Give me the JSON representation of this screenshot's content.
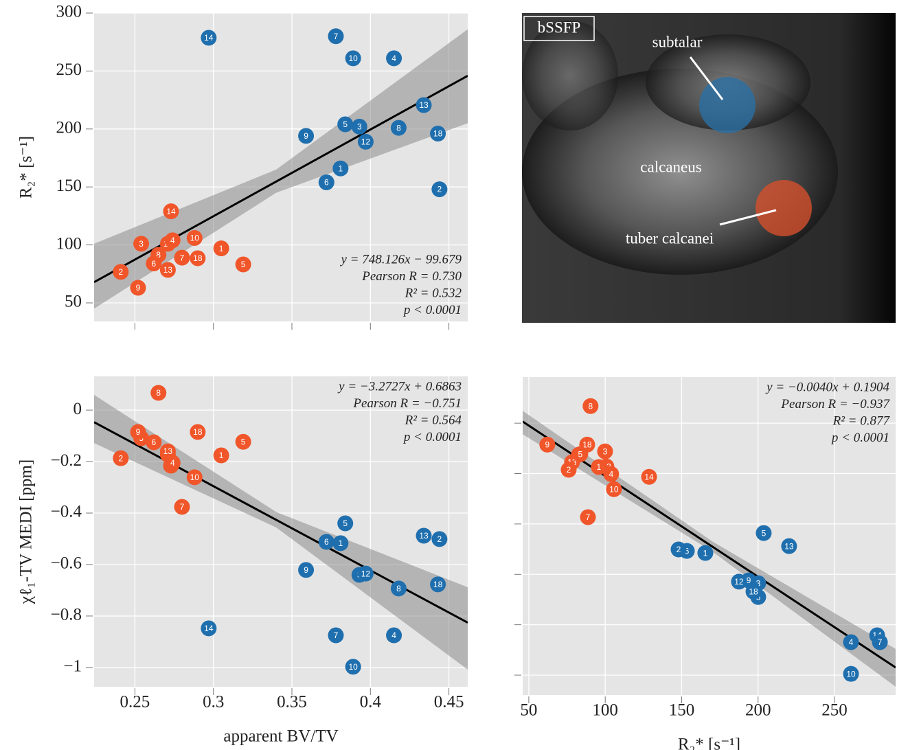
{
  "chart_data": [
    {
      "type": "scatter",
      "ylabel": "R₂*  [s⁻¹]",
      "xlim": [
        0.224,
        0.462
      ],
      "ylim": [
        34,
        300
      ],
      "xticks": [
        0.25,
        0.3,
        0.35,
        0.4,
        0.45
      ],
      "xtick_labels": false,
      "yticks": [
        50,
        100,
        150,
        200,
        250,
        300
      ],
      "grid": true,
      "series": [
        {
          "color": "#1f6fae",
          "labels": [
            "14",
            "7",
            "10",
            "4",
            "13",
            "5",
            "3",
            "8",
            "9",
            "18",
            "12",
            "1",
            "6",
            "2"
          ],
          "x": [
            0.297,
            0.378,
            0.389,
            0.415,
            0.434,
            0.384,
            0.393,
            0.418,
            0.359,
            0.443,
            0.397,
            0.381,
            0.372,
            0.444
          ],
          "values": [
            278.7,
            280,
            261,
            261,
            220.6,
            204,
            202,
            201,
            194,
            196,
            189,
            166,
            154,
            148
          ]
        },
        {
          "color": "#f0562a",
          "labels": [
            "14",
            "3",
            "12",
            "4",
            "10",
            "1",
            "8",
            "6",
            "7",
            "18",
            "13",
            "5",
            "2",
            "9"
          ],
          "x": [
            0.273,
            0.254,
            0.271,
            0.274,
            0.288,
            0.305,
            0.265,
            0.262,
            0.28,
            0.29,
            0.271,
            0.319,
            0.241,
            0.252
          ],
          "values": [
            129,
            101,
            101,
            104,
            106,
            97,
            91.5,
            84,
            89,
            88.5,
            78.4,
            83.2,
            76.7,
            63
          ]
        }
      ],
      "fit": {
        "x": [
          0.224,
          0.462
        ],
        "y": [
          67.9,
          245.9
        ]
      },
      "band": {
        "x": [
          0.224,
          0.34,
          0.462
        ],
        "upper": [
          101,
          165,
          286
        ],
        "lower": [
          45,
          145,
          205
        ]
      },
      "annotation": [
        "y = 748.126x − 99.679",
        "Pearson R = 0.730",
        "R² = 0.532",
        "p < 0.0001"
      ],
      "annotation_corner": "lower right"
    },
    {
      "type": "scatter",
      "ylabel": "χℓ₁-TV MEDI  [ppm]",
      "xlabel": "apparent BV/TV",
      "xlim": [
        0.224,
        0.462
      ],
      "ylim": [
        -1.075,
        0.131
      ],
      "xticks": [
        0.25,
        0.3,
        0.35,
        0.4,
        0.45
      ],
      "yticks": [
        0,
        {
          "value": -0.2,
          "label": "−0.2"
        },
        {
          "value": -0.4,
          "label": "−0.4"
        },
        {
          "value": -0.6,
          "label": "−0.6"
        },
        {
          "value": -0.8,
          "label": "−0.8"
        },
        {
          "value": -1,
          "label": "−1"
        }
      ],
      "grid": true,
      "series": [
        {
          "color": "#1f6fae",
          "labels": [
            "14",
            "7",
            "10",
            "4",
            "13",
            "5",
            "3",
            "8",
            "9",
            "18",
            "12",
            "1",
            "6",
            "2"
          ],
          "x": [
            0.297,
            0.378,
            0.389,
            0.415,
            0.434,
            0.384,
            0.393,
            0.418,
            0.359,
            0.443,
            0.397,
            0.381,
            0.372,
            0.444
          ],
          "values": [
            -0.848,
            -0.875,
            -0.997,
            -0.875,
            -0.488,
            -0.44,
            -0.64,
            -0.693,
            -0.621,
            -0.677,
            -0.635,
            -0.517,
            -0.512,
            -0.501
          ]
        },
        {
          "color": "#f0562a",
          "labels": [
            "14",
            "3",
            "12",
            "4",
            "10",
            "1",
            "8",
            "6",
            "7",
            "18",
            "13",
            "5",
            "2",
            "9"
          ],
          "x": [
            0.273,
            0.254,
            0.271,
            0.274,
            0.288,
            0.305,
            0.265,
            0.262,
            0.28,
            0.29,
            0.271,
            0.319,
            0.241,
            0.252
          ],
          "values": [
            -0.216,
            -0.109,
            -0.173,
            -0.205,
            -0.261,
            -0.176,
            0.067,
            -0.125,
            -0.376,
            -0.085,
            -0.16,
            -0.123,
            -0.187,
            -0.085
          ]
        }
      ],
      "fit": {
        "x": [
          0.224,
          0.462
        ],
        "y": [
          -0.0468,
          -0.8257
        ]
      },
      "band": {
        "x": [
          0.224,
          0.34,
          0.462
        ],
        "upper": [
          0.059,
          -0.396,
          -0.688
        ],
        "lower": [
          -0.128,
          -0.456,
          -1.008
        ]
      },
      "annotation": [
        "y = −3.2727x + 0.6863",
        "Pearson R = −0.751",
        "R² = 0.564",
        "p < 0.0001"
      ],
      "annotation_corner": "upper right"
    },
    {
      "type": "scatter",
      "xlabel": "R₂*  [s⁻¹]",
      "xlim": [
        46,
        290
      ],
      "ylim": [
        -1.079,
        0.183
      ],
      "xticks": [
        50,
        100,
        150,
        200,
        250
      ],
      "yticks": [
        0,
        -0.2,
        -0.4,
        -0.6,
        -0.8,
        -1
      ],
      "ytick_labels": false,
      "grid": true,
      "series": [
        {
          "color": "#1f6fae",
          "labels": [
            "14",
            "7",
            "10",
            "4",
            "13",
            "5",
            "3",
            "8",
            "9",
            "18",
            "12",
            "1",
            "6",
            "2"
          ],
          "x": [
            277.9,
            279.7,
            260.8,
            260.8,
            220.3,
            203.7,
            200.1,
            200.1,
            193.8,
            197,
            187.5,
            165.5,
            153.4,
            148
          ],
          "values": [
            -0.842,
            -0.869,
            -0.995,
            -0.869,
            -0.488,
            -0.436,
            -0.635,
            -0.69,
            -0.624,
            -0.668,
            -0.629,
            -0.515,
            -0.507,
            -0.501
          ]
        },
        {
          "color": "#f0562a",
          "labels": [
            "14",
            "3",
            "12",
            "4",
            "10",
            "1",
            "8",
            "6",
            "7",
            "18",
            "13",
            "5",
            "2",
            "9"
          ],
          "x": [
            128.7,
            99.9,
            100.8,
            103.9,
            105.7,
            95.8,
            90.4,
            82.8,
            88.7,
            88.2,
            78.3,
            83.7,
            76.1,
            62.1
          ],
          "values": [
            -0.213,
            -0.112,
            -0.172,
            -0.202,
            -0.262,
            -0.174,
            0.068,
            -0.125,
            -0.373,
            -0.085,
            -0.155,
            -0.123,
            -0.185,
            -0.085
          ]
        }
      ],
      "fit": {
        "x": [
          46,
          290
        ],
        "y": [
          0.0064,
          -0.9696
        ]
      },
      "band": {
        "x": [
          46,
          170,
          290
        ],
        "upper": [
          0.049,
          -0.469,
          -0.896
        ],
        "lower": [
          -0.044,
          -0.509,
          -1.046
        ]
      },
      "annotation": [
        "y = −0.0040x + 0.1904",
        "Pearson R = −0.937",
        "R² = 0.877",
        "p < 0.0001"
      ],
      "annotation_corner": "upper right"
    }
  ],
  "image": {
    "label": "bSSFP",
    "annotations": [
      "subtalar",
      "calcaneus",
      "tuber calcanei"
    ]
  }
}
